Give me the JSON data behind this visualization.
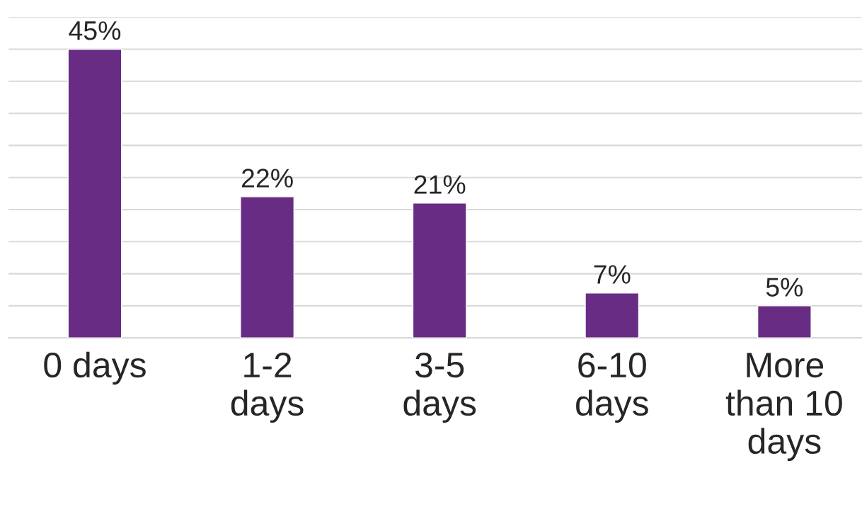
{
  "chart_data": {
    "type": "bar",
    "categories": [
      "0 days",
      "1-2 days",
      "3-5 days",
      "6-10 days",
      "More than 10 days"
    ],
    "values": [
      45,
      22,
      21,
      7,
      5
    ],
    "value_labels": [
      "45%",
      "22%",
      "21%",
      "7%",
      "5%"
    ],
    "color": "#692c84",
    "ylim": [
      0,
      50
    ],
    "yticks": [
      {
        "value": 0,
        "label": null
      },
      {
        "value": 5,
        "label": null
      },
      {
        "value": 10,
        "label": null
      },
      {
        "value": 15,
        "label": null
      },
      {
        "value": 20,
        "label": null
      },
      {
        "value": 25,
        "label": null
      },
      {
        "value": 30,
        "label": null
      },
      {
        "value": 35,
        "label": null
      },
      {
        "value": 40,
        "label": null
      },
      {
        "value": 45,
        "label": null
      },
      {
        "value": 50,
        "label": null
      }
    ],
    "grid": "y",
    "tick_labels": "x"
  }
}
